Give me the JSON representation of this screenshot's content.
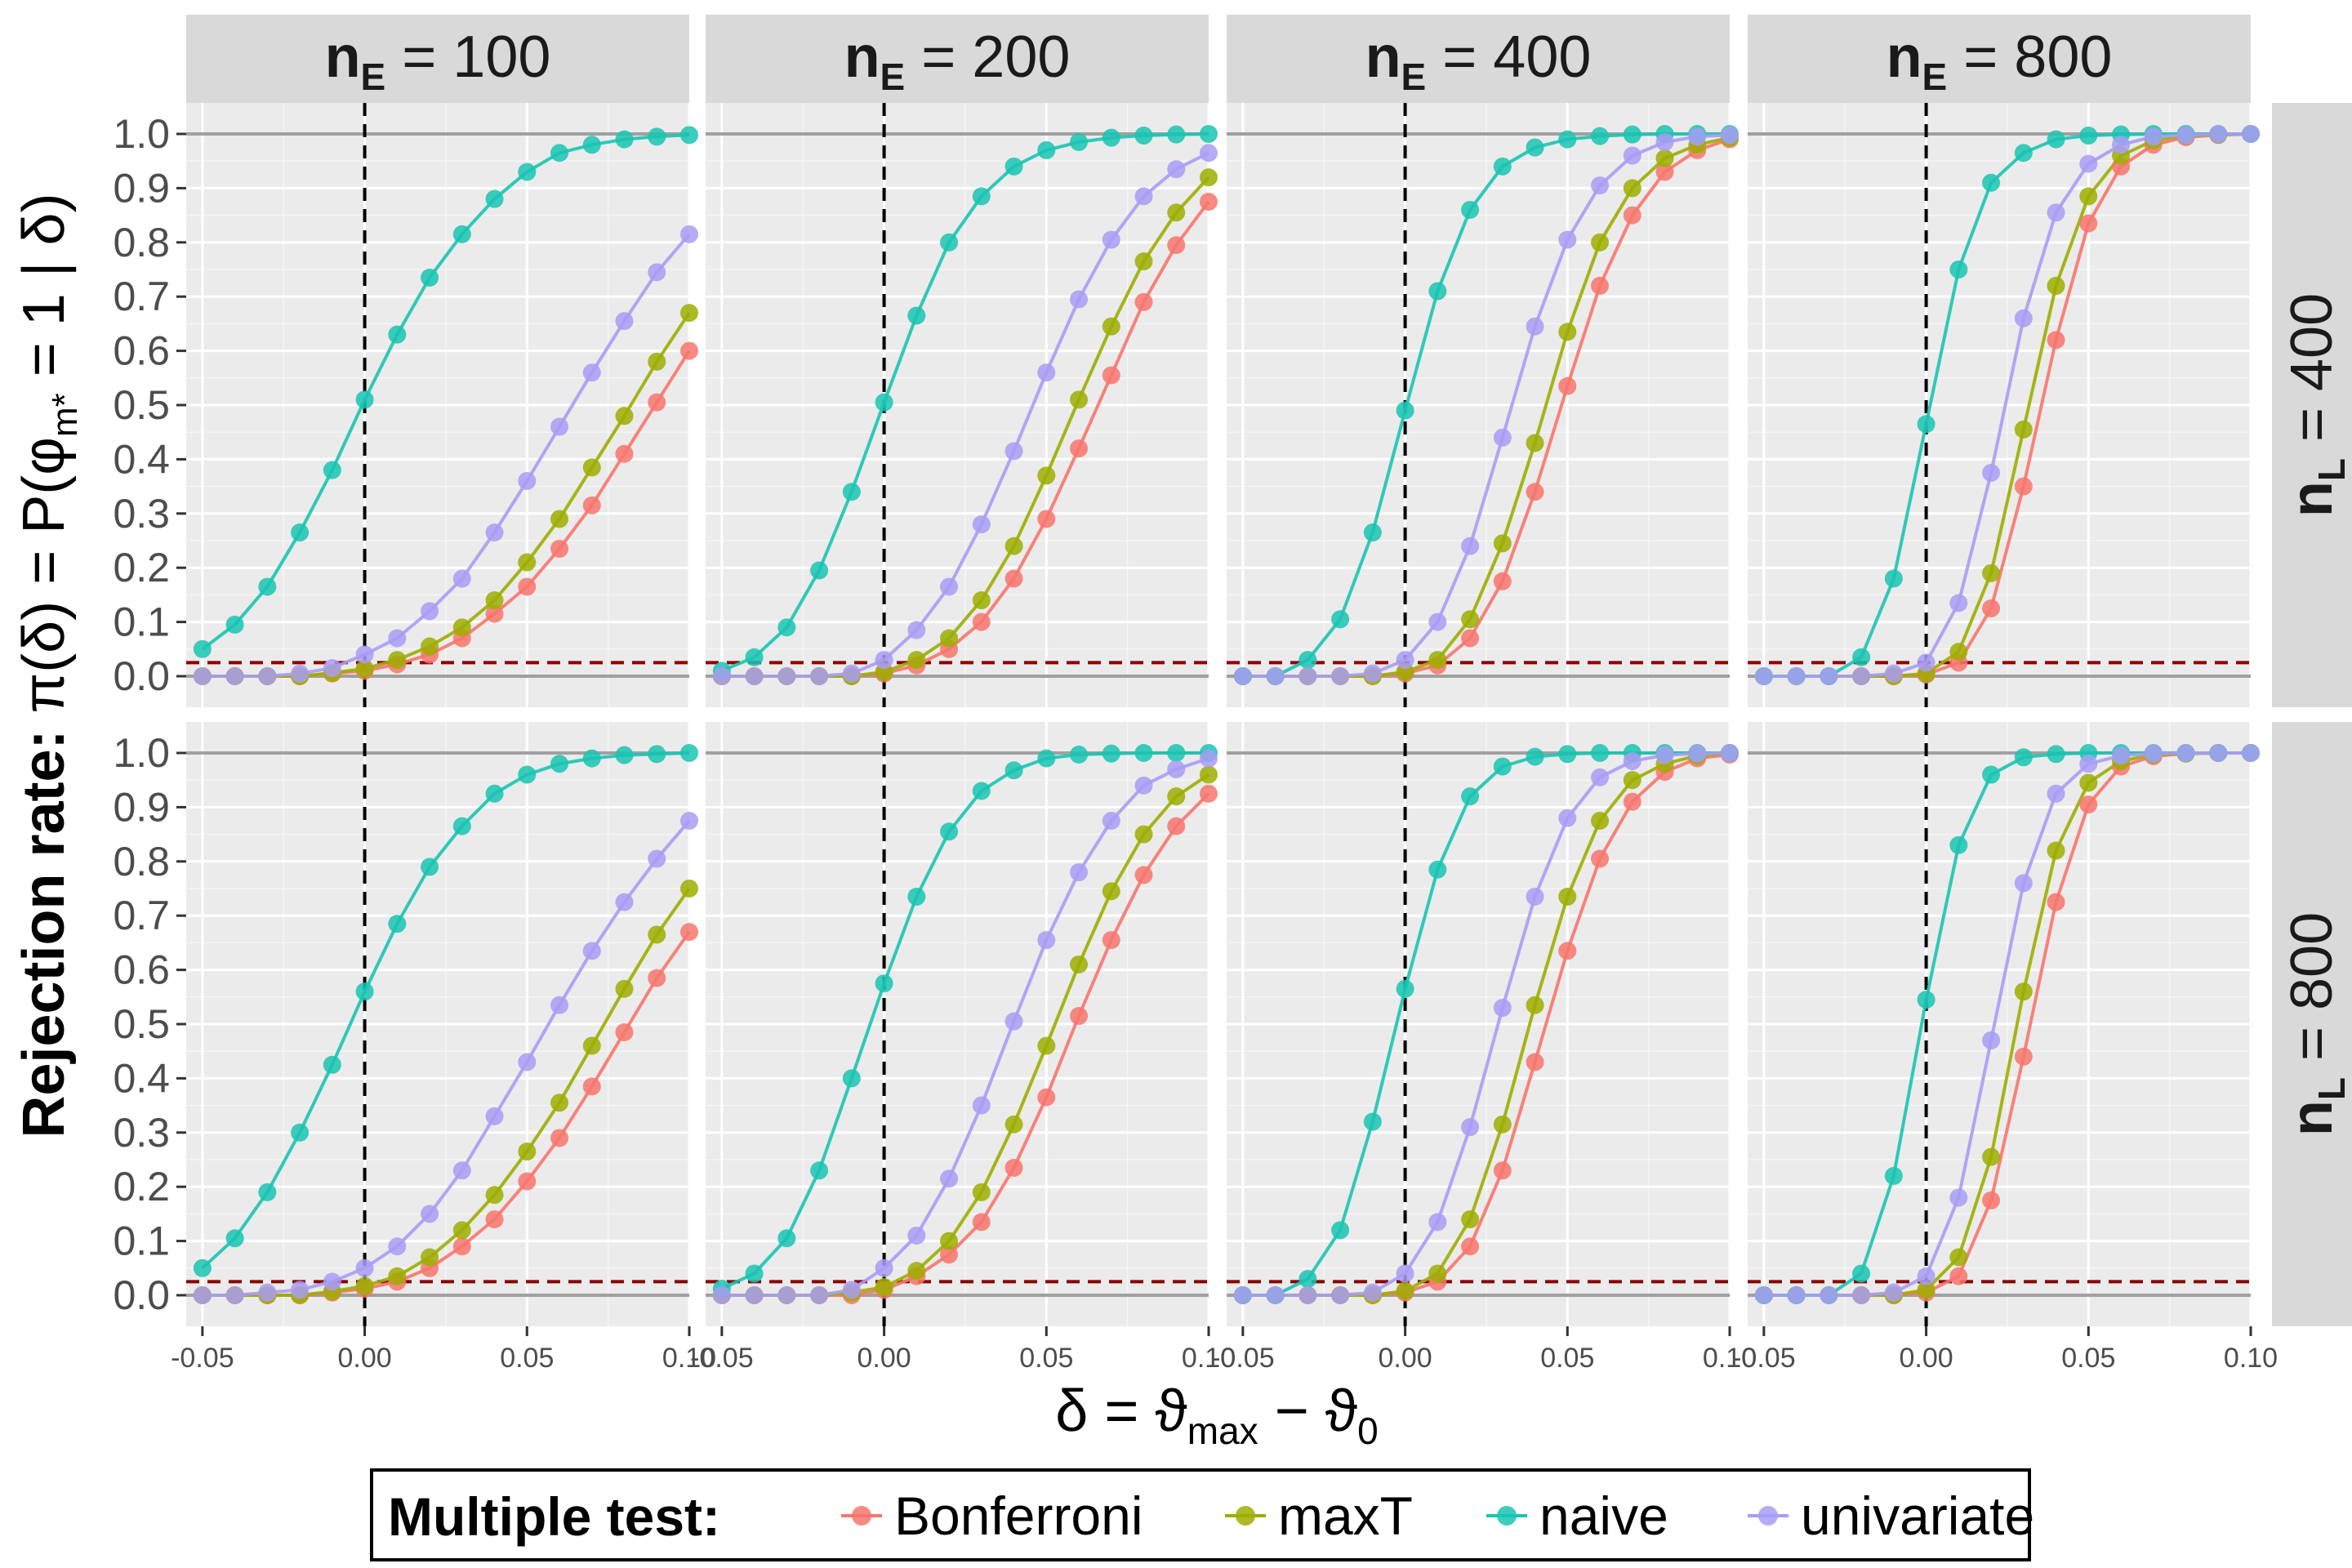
{
  "chart_data": {
    "type": "line",
    "facets": {
      "columns": [
        {
          "var": "n",
          "sub": "E",
          "value": "100"
        },
        {
          "var": "n",
          "sub": "E",
          "value": "200"
        },
        {
          "var": "n",
          "sub": "E",
          "value": "400"
        },
        {
          "var": "n",
          "sub": "E",
          "value": "800"
        }
      ],
      "rows": [
        {
          "var": "n",
          "sub": "L",
          "value": "400"
        },
        {
          "var": "n",
          "sub": "L",
          "value": "800"
        }
      ]
    },
    "x": [
      -0.05,
      -0.04,
      -0.03,
      -0.02,
      -0.01,
      0.0,
      0.01,
      0.02,
      0.03,
      0.04,
      0.05,
      0.06,
      0.07,
      0.08,
      0.09,
      0.1
    ],
    "xlim": [
      -0.055,
      0.1
    ],
    "ylim": [
      0,
      1.0
    ],
    "x_ticks": [
      "-0.05",
      "0.00",
      "0.05",
      "0.10"
    ],
    "y_ticks": [
      "0.0",
      "0.1",
      "0.2",
      "0.3",
      "0.4",
      "0.5",
      "0.6",
      "0.7",
      "0.8",
      "0.9",
      "1.0"
    ],
    "xlabel": {
      "delta": "δ",
      "eq": " = ",
      "theta": "ϑ",
      "sub_max": "max",
      "minus": " − ",
      "sub_0": "0"
    },
    "ylabel": {
      "bold": "Rejection rate: ",
      "rest": "π(δ) = P(φ",
      "sub": "m*",
      "tail": " = 1 | δ)"
    },
    "reference_lines": {
      "alpha": 0.025,
      "alpha_color": "#8b0000",
      "delta_zero": 0.0
    },
    "legend": {
      "title": "Multiple test:",
      "position": "bottom"
    },
    "series_styles": [
      {
        "name": "Bonferroni",
        "color": "#F8766D"
      },
      {
        "name": "maxT",
        "color": "#9CAE00"
      },
      {
        "name": "naive",
        "color": "#19C4B2"
      },
      {
        "name": "univariate",
        "color": "#A99CF5"
      }
    ],
    "panels": [
      {
        "row": 0,
        "col": 0,
        "series": [
          {
            "name": "Bonferroni",
            "values": [
              0.0,
              0.0,
              0.0,
              0.0,
              0.005,
              0.01,
              0.022,
              0.04,
              0.07,
              0.115,
              0.165,
              0.235,
              0.315,
              0.41,
              0.505,
              0.6
            ]
          },
          {
            "name": "maxT",
            "values": [
              0.0,
              0.0,
              0.0,
              0.0,
              0.006,
              0.014,
              0.03,
              0.055,
              0.09,
              0.14,
              0.21,
              0.29,
              0.385,
              0.48,
              0.58,
              0.67
            ]
          },
          {
            "name": "naive",
            "values": [
              0.05,
              0.095,
              0.165,
              0.265,
              0.38,
              0.51,
              0.63,
              0.735,
              0.815,
              0.88,
              0.93,
              0.965,
              0.98,
              0.99,
              0.995,
              0.998
            ]
          },
          {
            "name": "univariate",
            "values": [
              0.0,
              0.0,
              0.0,
              0.005,
              0.015,
              0.04,
              0.07,
              0.12,
              0.18,
              0.265,
              0.36,
              0.46,
              0.56,
              0.655,
              0.745,
              0.815
            ]
          }
        ]
      },
      {
        "row": 0,
        "col": 1,
        "series": [
          {
            "name": "Bonferroni",
            "values": [
              0.0,
              0.0,
              0.0,
              0.0,
              0.0,
              0.005,
              0.02,
              0.05,
              0.1,
              0.18,
              0.29,
              0.42,
              0.555,
              0.69,
              0.795,
              0.875
            ]
          },
          {
            "name": "maxT",
            "values": [
              0.0,
              0.0,
              0.0,
              0.0,
              0.0,
              0.008,
              0.03,
              0.07,
              0.14,
              0.24,
              0.37,
              0.51,
              0.645,
              0.765,
              0.855,
              0.92
            ]
          },
          {
            "name": "naive",
            "values": [
              0.01,
              0.035,
              0.09,
              0.195,
              0.34,
              0.505,
              0.665,
              0.8,
              0.885,
              0.94,
              0.97,
              0.985,
              0.993,
              0.997,
              0.999,
              1.0
            ]
          },
          {
            "name": "univariate",
            "values": [
              0.0,
              0.0,
              0.0,
              0.0,
              0.005,
              0.03,
              0.085,
              0.165,
              0.28,
              0.415,
              0.56,
              0.695,
              0.805,
              0.885,
              0.935,
              0.965
            ]
          }
        ]
      },
      {
        "row": 0,
        "col": 2,
        "series": [
          {
            "name": "Bonferroni",
            "values": [
              0.0,
              0.0,
              0.0,
              0.0,
              0.0,
              0.005,
              0.02,
              0.07,
              0.175,
              0.34,
              0.535,
              0.72,
              0.85,
              0.93,
              0.97,
              0.99
            ]
          },
          {
            "name": "maxT",
            "values": [
              0.0,
              0.0,
              0.0,
              0.0,
              0.0,
              0.008,
              0.03,
              0.105,
              0.245,
              0.43,
              0.635,
              0.8,
              0.9,
              0.955,
              0.98,
              0.993
            ]
          },
          {
            "name": "naive",
            "values": [
              0.0,
              0.0,
              0.03,
              0.105,
              0.265,
              0.49,
              0.71,
              0.86,
              0.94,
              0.975,
              0.99,
              0.996,
              0.999,
              1.0,
              1.0,
              1.0
            ]
          },
          {
            "name": "univariate",
            "values": [
              0.0,
              0.0,
              0.0,
              0.0,
              0.005,
              0.03,
              0.1,
              0.24,
              0.44,
              0.645,
              0.805,
              0.905,
              0.96,
              0.985,
              0.995,
              0.998
            ]
          }
        ]
      },
      {
        "row": 0,
        "col": 3,
        "series": [
          {
            "name": "Bonferroni",
            "values": [
              0.0,
              0.0,
              0.0,
              0.0,
              0.0,
              0.003,
              0.025,
              0.125,
              0.35,
              0.62,
              0.835,
              0.94,
              0.98,
              0.994,
              0.998,
              1.0
            ]
          },
          {
            "name": "maxT",
            "values": [
              0.0,
              0.0,
              0.0,
              0.0,
              0.0,
              0.005,
              0.045,
              0.19,
              0.455,
              0.72,
              0.885,
              0.96,
              0.988,
              0.997,
              0.999,
              1.0
            ]
          },
          {
            "name": "naive",
            "values": [
              0.0,
              0.0,
              0.0,
              0.035,
              0.18,
              0.465,
              0.75,
              0.91,
              0.965,
              0.99,
              0.997,
              0.999,
              1.0,
              1.0,
              1.0,
              1.0
            ]
          },
          {
            "name": "univariate",
            "values": [
              0.0,
              0.0,
              0.0,
              0.0,
              0.005,
              0.025,
              0.135,
              0.375,
              0.66,
              0.855,
              0.945,
              0.98,
              0.995,
              0.998,
              1.0,
              1.0
            ]
          }
        ]
      },
      {
        "row": 1,
        "col": 0,
        "series": [
          {
            "name": "Bonferroni",
            "values": [
              0.0,
              0.0,
              0.0,
              0.0,
              0.005,
              0.012,
              0.025,
              0.05,
              0.09,
              0.14,
              0.21,
              0.29,
              0.385,
              0.485,
              0.585,
              0.67
            ]
          },
          {
            "name": "maxT",
            "values": [
              0.0,
              0.0,
              0.0,
              0.0,
              0.007,
              0.017,
              0.035,
              0.07,
              0.12,
              0.185,
              0.265,
              0.355,
              0.46,
              0.565,
              0.665,
              0.75
            ]
          },
          {
            "name": "naive",
            "values": [
              0.05,
              0.105,
              0.19,
              0.3,
              0.425,
              0.56,
              0.685,
              0.79,
              0.865,
              0.925,
              0.96,
              0.98,
              0.99,
              0.996,
              0.998,
              1.0
            ]
          },
          {
            "name": "univariate",
            "values": [
              0.0,
              0.0,
              0.005,
              0.01,
              0.025,
              0.05,
              0.09,
              0.15,
              0.23,
              0.33,
              0.43,
              0.535,
              0.635,
              0.725,
              0.805,
              0.875
            ]
          }
        ]
      },
      {
        "row": 1,
        "col": 1,
        "series": [
          {
            "name": "Bonferroni",
            "values": [
              0.0,
              0.0,
              0.0,
              0.0,
              0.0,
              0.01,
              0.035,
              0.075,
              0.135,
              0.235,
              0.365,
              0.515,
              0.655,
              0.775,
              0.865,
              0.925
            ]
          },
          {
            "name": "maxT",
            "values": [
              0.0,
              0.0,
              0.0,
              0.0,
              0.005,
              0.015,
              0.045,
              0.1,
              0.19,
              0.315,
              0.46,
              0.61,
              0.745,
              0.85,
              0.92,
              0.96
            ]
          },
          {
            "name": "naive",
            "values": [
              0.012,
              0.04,
              0.105,
              0.23,
              0.4,
              0.575,
              0.735,
              0.855,
              0.93,
              0.968,
              0.99,
              0.997,
              0.999,
              1.0,
              1.0,
              1.0
            ]
          },
          {
            "name": "univariate",
            "values": [
              0.0,
              0.0,
              0.0,
              0.0,
              0.01,
              0.05,
              0.11,
              0.215,
              0.35,
              0.505,
              0.655,
              0.78,
              0.875,
              0.94,
              0.97,
              0.99
            ]
          }
        ]
      },
      {
        "row": 1,
        "col": 2,
        "series": [
          {
            "name": "Bonferroni",
            "values": [
              0.0,
              0.0,
              0.0,
              0.0,
              0.0,
              0.005,
              0.025,
              0.09,
              0.23,
              0.43,
              0.635,
              0.805,
              0.91,
              0.965,
              0.99,
              0.997
            ]
          },
          {
            "name": "maxT",
            "values": [
              0.0,
              0.0,
              0.0,
              0.0,
              0.0,
              0.008,
              0.04,
              0.14,
              0.315,
              0.535,
              0.735,
              0.875,
              0.95,
              0.98,
              0.995,
              1.0
            ]
          },
          {
            "name": "naive",
            "values": [
              0.0,
              0.0,
              0.03,
              0.12,
              0.32,
              0.565,
              0.785,
              0.92,
              0.975,
              0.993,
              0.998,
              1.0,
              1.0,
              1.0,
              1.0,
              1.0
            ]
          },
          {
            "name": "univariate",
            "values": [
              0.0,
              0.0,
              0.0,
              0.0,
              0.005,
              0.04,
              0.135,
              0.31,
              0.53,
              0.735,
              0.88,
              0.955,
              0.985,
              0.996,
              0.999,
              1.0
            ]
          }
        ]
      },
      {
        "row": 1,
        "col": 3,
        "series": [
          {
            "name": "Bonferroni",
            "values": [
              0.0,
              0.0,
              0.0,
              0.0,
              0.0,
              0.005,
              0.035,
              0.175,
              0.44,
              0.725,
              0.905,
              0.975,
              0.994,
              0.999,
              1.0,
              1.0
            ]
          },
          {
            "name": "maxT",
            "values": [
              0.0,
              0.0,
              0.0,
              0.0,
              0.0,
              0.01,
              0.07,
              0.255,
              0.56,
              0.82,
              0.945,
              0.985,
              0.997,
              0.999,
              1.0,
              1.0
            ]
          },
          {
            "name": "naive",
            "values": [
              0.0,
              0.0,
              0.0,
              0.04,
              0.22,
              0.545,
              0.83,
              0.96,
              0.992,
              0.998,
              1.0,
              1.0,
              1.0,
              1.0,
              1.0,
              1.0
            ]
          },
          {
            "name": "univariate",
            "values": [
              0.0,
              0.0,
              0.0,
              0.0,
              0.005,
              0.035,
              0.18,
              0.47,
              0.76,
              0.925,
              0.98,
              0.995,
              0.999,
              1.0,
              1.0,
              1.0
            ]
          }
        ]
      }
    ]
  }
}
